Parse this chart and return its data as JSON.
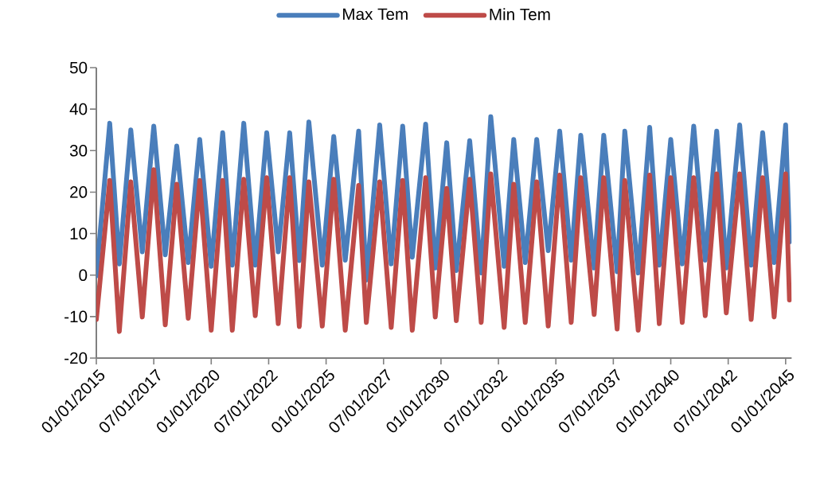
{
  "chart_data": {
    "type": "line",
    "x": [
      "2015-01",
      "2015-08",
      "2016-01",
      "2016-07",
      "2017-01",
      "2017-07",
      "2018-01",
      "2018-07",
      "2019-01",
      "2019-07",
      "2020-01",
      "2020-07",
      "2020-12",
      "2021-06",
      "2021-12",
      "2022-06",
      "2022-12",
      "2023-06",
      "2023-11",
      "2024-04",
      "2024-11",
      "2025-05",
      "2025-11",
      "2026-06",
      "2026-10",
      "2027-05",
      "2027-11",
      "2028-05",
      "2028-10",
      "2029-05",
      "2029-10",
      "2030-04",
      "2030-09",
      "2031-04",
      "2031-10",
      "2032-03",
      "2032-10",
      "2033-03",
      "2033-09",
      "2034-03",
      "2034-09",
      "2035-03",
      "2035-09",
      "2036-02",
      "2036-09",
      "2037-02",
      "2037-09",
      "2038-01",
      "2038-08",
      "2039-02",
      "2039-07",
      "2040-01",
      "2040-07",
      "2041-01",
      "2041-07",
      "2042-01",
      "2042-06",
      "2043-01",
      "2043-07",
      "2044-01",
      "2044-07",
      "2045-01",
      "2045-03"
    ],
    "series": [
      {
        "name": "Max Tem",
        "color": "#4a7ebb",
        "values": [
          -0.2,
          36.6,
          2.7,
          35.0,
          5.6,
          35.9,
          4.9,
          31.1,
          3.0,
          32.7,
          2.1,
          34.3,
          2.4,
          36.6,
          2.4,
          34.3,
          5.6,
          34.3,
          3.5,
          36.9,
          2.4,
          33.4,
          3.6,
          34.7,
          -1.2,
          36.2,
          2.7,
          35.9,
          4.3,
          36.4,
          1.7,
          31.9,
          1.1,
          32.4,
          0.5,
          38.2,
          2.1,
          32.7,
          3.0,
          32.7,
          5.9,
          34.7,
          3.6,
          33.7,
          1.7,
          33.7,
          0.8,
          34.7,
          0.5,
          35.6,
          2.4,
          32.7,
          2.7,
          35.9,
          3.6,
          34.7,
          1.7,
          36.2,
          2.4,
          34.3,
          3.0,
          36.2,
          8
        ]
      },
      {
        "name": "Min Tem",
        "color": "#be4b48",
        "values": [
          -10.7,
          22.8,
          -13.6,
          22.5,
          -10.1,
          25.4,
          -12.0,
          21.9,
          -10.4,
          22.8,
          -13.3,
          22.8,
          -13.3,
          23.1,
          -9.8,
          23.5,
          -11.7,
          23.5,
          -12.4,
          22.5,
          -12.3,
          23.1,
          -13.3,
          21.6,
          -11.4,
          22.5,
          -12.6,
          22.8,
          -13.3,
          23.5,
          -10.1,
          20.9,
          -11.0,
          23.1,
          -11.4,
          24.4,
          -12.6,
          21.9,
          -11.4,
          22.5,
          -12.3,
          24.1,
          -11.4,
          23.5,
          -9.5,
          23.5,
          -13.0,
          22.8,
          -13.3,
          24.1,
          -11.7,
          23.5,
          -11.4,
          23.5,
          -9.8,
          24.4,
          -9.1,
          24.4,
          -10.7,
          23.5,
          -10.1,
          24.4,
          -6
        ]
      }
    ],
    "xlim": [
      "2015-01-01",
      "2045-04-05"
    ],
    "xticks": [
      {
        "value": "2015-01-01",
        "label": "01/01/2015"
      },
      {
        "value": "2017-07-01",
        "label": "07/01/2017"
      },
      {
        "value": "2020-01-01",
        "label": "01/01/2020"
      },
      {
        "value": "2022-07-01",
        "label": "07/01/2022"
      },
      {
        "value": "2025-01-01",
        "label": "01/01/2025"
      },
      {
        "value": "2027-07-01",
        "label": "07/01/2027"
      },
      {
        "value": "2030-01-01",
        "label": "01/01/2030"
      },
      {
        "value": "2032-07-01",
        "label": "07/01/2032"
      },
      {
        "value": "2035-01-01",
        "label": "01/01/2035"
      },
      {
        "value": "2037-07-01",
        "label": "07/01/2037"
      },
      {
        "value": "2040-01-01",
        "label": "01/01/2040"
      },
      {
        "value": "2042-07-01",
        "label": "07/01/2042"
      },
      {
        "value": "2045-01-01",
        "label": "01/01/2045"
      }
    ],
    "ylim": [
      -20,
      50
    ],
    "yticks": [
      -20,
      -10,
      0,
      10,
      20,
      30,
      40,
      50
    ],
    "grid": false,
    "legend": "top"
  }
}
